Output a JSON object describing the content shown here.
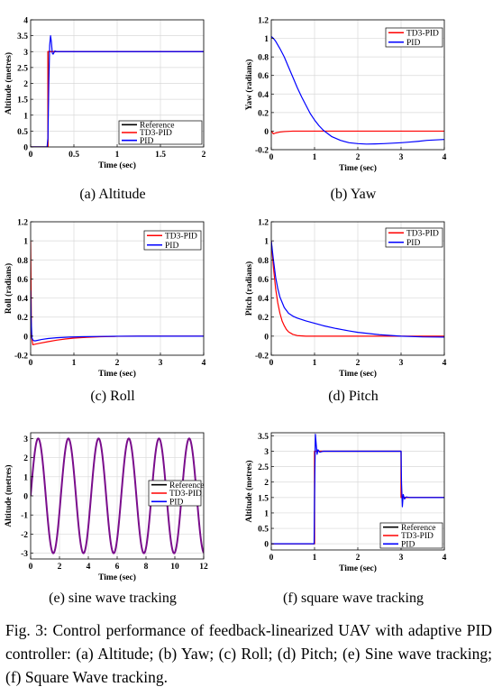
{
  "caption": "Fig. 3: Control performance of feedback-linearized UAV with adaptive PID controller: (a) Altitude; (b) Yaw; (c) Roll; (d) Pitch; (e) Sine wave tracking; (f) Square Wave tracking.",
  "colors": {
    "reference": "#000000",
    "td3": "#ff0000",
    "pid": "#0000ff",
    "sine_overlap": "#7a0d8c"
  },
  "chart_data": [
    {
      "type": "line",
      "subcaption": "(a) Altitude",
      "xlabel": "Time (sec)",
      "ylabel": "Altitude (metres)",
      "xlim": [
        0,
        2
      ],
      "ylim": [
        0,
        4
      ],
      "xticks": [
        0,
        0.5,
        1,
        1.5,
        2
      ],
      "xtick_labels": [
        "0",
        "0.5",
        "1",
        "1.5",
        "2"
      ],
      "yticks": [
        0,
        0.5,
        1,
        1.5,
        2,
        2.5,
        3,
        3.5,
        4
      ],
      "ytick_labels": [
        "0",
        "0.5",
        "1",
        "1.5",
        "2",
        "2.5",
        "3",
        "3.5",
        "4"
      ],
      "grid": true,
      "legend": "bottom-right",
      "series": [
        {
          "name": "Reference",
          "color": "#000000",
          "x": [
            0,
            0.2,
            0.2,
            2
          ],
          "y": [
            0,
            0,
            3,
            3
          ]
        },
        {
          "name": "TD3-PID",
          "color": "#ff0000",
          "x": [
            0,
            0.2,
            0.2,
            2
          ],
          "y": [
            0,
            0,
            3,
            3
          ]
        },
        {
          "name": "PID",
          "color": "#0000ff",
          "x": [
            0,
            0.19,
            0.2,
            0.21,
            0.22,
            0.23,
            0.24,
            0.25,
            0.26,
            0.28,
            0.3,
            0.35,
            2
          ],
          "y": [
            0,
            0,
            0.3,
            2.0,
            3.2,
            3.5,
            3.3,
            2.95,
            2.92,
            3.02,
            3.0,
            3.0,
            3.0
          ]
        }
      ]
    },
    {
      "type": "line",
      "subcaption": "(b) Yaw",
      "xlabel": "Time (sec)",
      "ylabel": "Yaw (radians)",
      "xlim": [
        0,
        4
      ],
      "ylim": [
        -0.2,
        1.2
      ],
      "xticks": [
        0,
        1,
        2,
        3,
        4
      ],
      "xtick_labels": [
        "0",
        "1",
        "2",
        "3",
        "4"
      ],
      "yticks": [
        -0.2,
        0,
        0.2,
        0.4,
        0.6,
        0.8,
        1,
        1.2
      ],
      "ytick_labels": [
        "-0.2",
        "0",
        "0.2",
        "0.4",
        "0.6",
        "0.8",
        "1",
        "1.2"
      ],
      "grid": true,
      "legend": "top-right",
      "series": [
        {
          "name": "TD3-PID",
          "color": "#ff0000",
          "x": [
            0,
            0.05,
            0.1,
            0.2,
            0.3,
            0.5,
            0.8,
            4
          ],
          "y": [
            0,
            -0.03,
            -0.02,
            -0.01,
            -0.005,
            0,
            0,
            0
          ]
        },
        {
          "name": "PID",
          "color": "#0000ff",
          "x": [
            0,
            0.05,
            0.1,
            0.2,
            0.3,
            0.4,
            0.5,
            0.6,
            0.7,
            0.8,
            0.9,
            1.0,
            1.1,
            1.2,
            1.4,
            1.6,
            1.8,
            2.0,
            2.2,
            2.4,
            2.6,
            2.8,
            3.0,
            3.2,
            3.4,
            3.6,
            3.8,
            4.0
          ],
          "y": [
            1.02,
            1.0,
            0.97,
            0.89,
            0.8,
            0.69,
            0.58,
            0.47,
            0.37,
            0.28,
            0.19,
            0.12,
            0.06,
            0.01,
            -0.06,
            -0.1,
            -0.125,
            -0.135,
            -0.14,
            -0.138,
            -0.135,
            -0.13,
            -0.125,
            -0.118,
            -0.11,
            -0.1,
            -0.095,
            -0.09
          ]
        }
      ]
    },
    {
      "type": "line",
      "subcaption": "(c) Roll",
      "xlabel": "Time (sec)",
      "ylabel": "Roll (radians)",
      "xlim": [
        0,
        4
      ],
      "ylim": [
        -0.2,
        1.2
      ],
      "xticks": [
        0,
        1,
        2,
        3,
        4
      ],
      "xtick_labels": [
        "0",
        "1",
        "2",
        "3",
        "4"
      ],
      "yticks": [
        -0.2,
        0,
        0.2,
        0.4,
        0.6,
        0.8,
        1,
        1.2
      ],
      "ytick_labels": [
        "-0.2",
        "0",
        "0.2",
        "0.4",
        "0.6",
        "0.8",
        "1",
        "1.2"
      ],
      "grid": true,
      "legend": "top-right",
      "series": [
        {
          "name": "TD3-PID",
          "color": "#ff0000",
          "x": [
            0,
            0.02,
            0.05,
            0.1,
            0.2,
            0.4,
            0.6,
            0.8,
            1.0,
            1.3,
            1.6,
            2.0,
            2.5,
            4
          ],
          "y": [
            1.0,
            0.0,
            -0.09,
            -0.085,
            -0.075,
            -0.058,
            -0.042,
            -0.03,
            -0.02,
            -0.012,
            -0.006,
            -0.002,
            0,
            0
          ]
        },
        {
          "name": "PID",
          "color": "#0000ff",
          "x": [
            0,
            0.01,
            0.03,
            0.06,
            0.1,
            0.15,
            0.25,
            0.4,
            0.6,
            0.9,
            1.2,
            1.6,
            2.0,
            2.5,
            4
          ],
          "y": [
            0.48,
            0.2,
            -0.02,
            -0.045,
            -0.05,
            -0.045,
            -0.035,
            -0.025,
            -0.017,
            -0.01,
            -0.006,
            -0.003,
            -0.001,
            0,
            0
          ]
        }
      ]
    },
    {
      "type": "line",
      "subcaption": "(d) Pitch",
      "xlabel": "Time (sec)",
      "ylabel": "Pitch (radians)",
      "xlim": [
        0,
        4
      ],
      "ylim": [
        -0.2,
        1.2
      ],
      "xticks": [
        0,
        1,
        2,
        3,
        4
      ],
      "xtick_labels": [
        "0",
        "1",
        "2",
        "3",
        "4"
      ],
      "yticks": [
        -0.2,
        0,
        0.2,
        0.4,
        0.6,
        0.8,
        1,
        1.2
      ],
      "ytick_labels": [
        "-0.2",
        "0",
        "0.2",
        "0.4",
        "0.6",
        "0.8",
        "1",
        "1.2"
      ],
      "grid": true,
      "legend": "top-right",
      "series": [
        {
          "name": "TD3-PID",
          "color": "#ff0000",
          "x": [
            0,
            0.05,
            0.1,
            0.15,
            0.2,
            0.25,
            0.3,
            0.35,
            0.4,
            0.5,
            0.6,
            0.8,
            1.0,
            4
          ],
          "y": [
            1.0,
            0.72,
            0.5,
            0.35,
            0.24,
            0.16,
            0.11,
            0.07,
            0.045,
            0.018,
            0.006,
            0,
            0,
            0
          ]
        },
        {
          "name": "PID",
          "color": "#0000ff",
          "x": [
            0,
            0.05,
            0.1,
            0.15,
            0.2,
            0.3,
            0.4,
            0.5,
            0.6,
            0.8,
            1.0,
            1.2,
            1.5,
            1.8,
            2.0,
            2.5,
            3.0,
            3.5,
            4.0
          ],
          "y": [
            1.0,
            0.8,
            0.62,
            0.5,
            0.41,
            0.3,
            0.24,
            0.21,
            0.19,
            0.16,
            0.135,
            0.11,
            0.08,
            0.055,
            0.04,
            0.015,
            0.0,
            -0.008,
            -0.01
          ]
        }
      ]
    },
    {
      "type": "line",
      "subcaption": "(e) sine wave tracking",
      "xlabel": "Time (sec)",
      "ylabel": "Altitude (metres)",
      "xlim": [
        0,
        12
      ],
      "ylim": [
        -3.3,
        3.3
      ],
      "xticks": [
        0,
        2,
        4,
        6,
        8,
        10,
        12
      ],
      "xtick_labels": [
        "0",
        "2",
        "4",
        "6",
        "8",
        "10",
        "12"
      ],
      "yticks": [
        -3,
        -2,
        -1,
        0,
        1,
        2,
        3
      ],
      "ytick_labels": [
        "-3",
        "-2",
        "-1",
        "0",
        "1",
        "2",
        "3"
      ],
      "grid": true,
      "legend": "center-right",
      "series": [
        {
          "name": "Reference",
          "color": "#000000",
          "function": "3*sin(3*t)",
          "t_range": [
            0,
            12
          ]
        },
        {
          "name": "TD3-PID",
          "color": "#ff0000",
          "function": "3*sin(3*t)",
          "t_range": [
            0,
            12
          ]
        },
        {
          "name": "PID",
          "color": "#0000ff",
          "function": "3*sin(3*t)",
          "t_range": [
            0,
            12
          ]
        }
      ]
    },
    {
      "type": "line",
      "subcaption": "(f) square wave tracking",
      "xlabel": "Time (sec)",
      "ylabel": "Altitude (metres)",
      "xlim": [
        0,
        4
      ],
      "ylim": [
        -0.2,
        3.6
      ],
      "xticks": [
        0,
        1,
        2,
        3,
        4
      ],
      "xtick_labels": [
        "0",
        "1",
        "2",
        "3",
        "4"
      ],
      "yticks": [
        0,
        0.5,
        1,
        1.5,
        2,
        2.5,
        3,
        3.5
      ],
      "ytick_labels": [
        "0",
        "0.5",
        "1",
        "1.5",
        "2",
        "2.5",
        "3",
        "3.5"
      ],
      "grid": true,
      "legend": "bottom-right",
      "series": [
        {
          "name": "Reference",
          "color": "#000000",
          "x": [
            0,
            1,
            1,
            3,
            3,
            4
          ],
          "y": [
            0,
            0,
            3,
            3,
            1.5,
            1.5
          ]
        },
        {
          "name": "TD3-PID",
          "color": "#ff0000",
          "x": [
            0,
            1,
            1,
            3,
            3,
            4
          ],
          "y": [
            0,
            0,
            3,
            3,
            1.5,
            1.5
          ]
        },
        {
          "name": "PID",
          "color": "#0000ff",
          "x": [
            0,
            0.99,
            1.0,
            1.02,
            1.04,
            1.06,
            1.08,
            1.12,
            1.2,
            3.0,
            3.01,
            3.03,
            3.05,
            3.08,
            3.12,
            3.2,
            4.0
          ],
          "y": [
            0,
            0,
            1.5,
            3.55,
            3.2,
            2.9,
            3.05,
            2.97,
            3.0,
            3.0,
            2.0,
            1.2,
            1.6,
            1.45,
            1.52,
            1.5,
            1.5
          ]
        }
      ]
    }
  ]
}
